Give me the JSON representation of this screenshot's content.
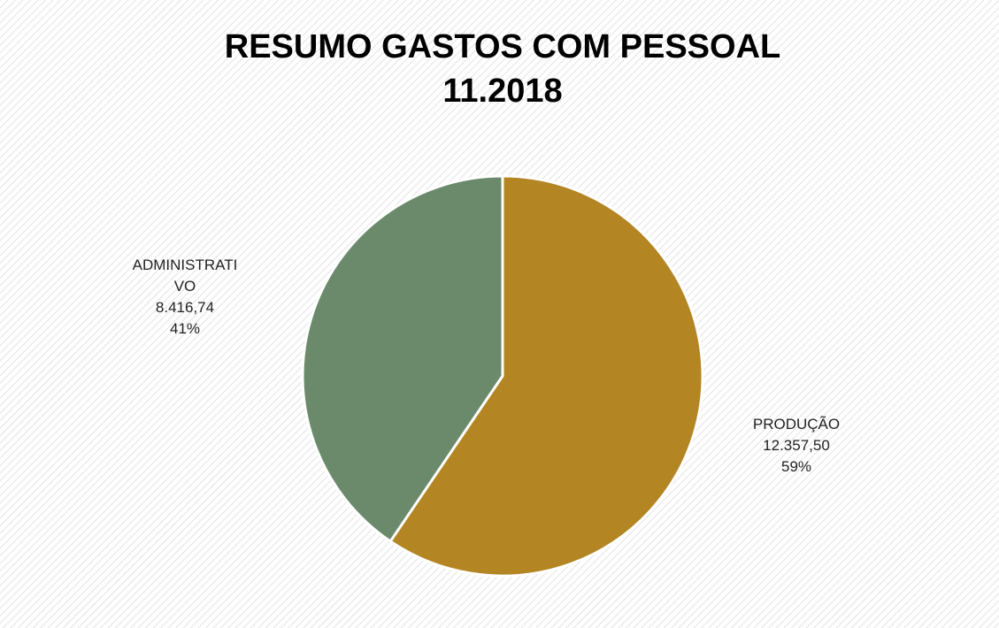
{
  "chart_data": {
    "type": "pie",
    "title": "RESUMO GASTOS COM PESSOAL",
    "subtitle": "11.2018",
    "categories": [
      "PRODUÇÃO",
      "ADMINISTRATIVO"
    ],
    "values": [
      12357.5,
      8416.74
    ],
    "value_labels": [
      "12.357,50",
      "8.416,74"
    ],
    "percents": [
      59,
      41
    ],
    "percent_labels": [
      "59%",
      "41%"
    ],
    "colors": [
      "#b38523",
      "#6a8a6b"
    ]
  }
}
